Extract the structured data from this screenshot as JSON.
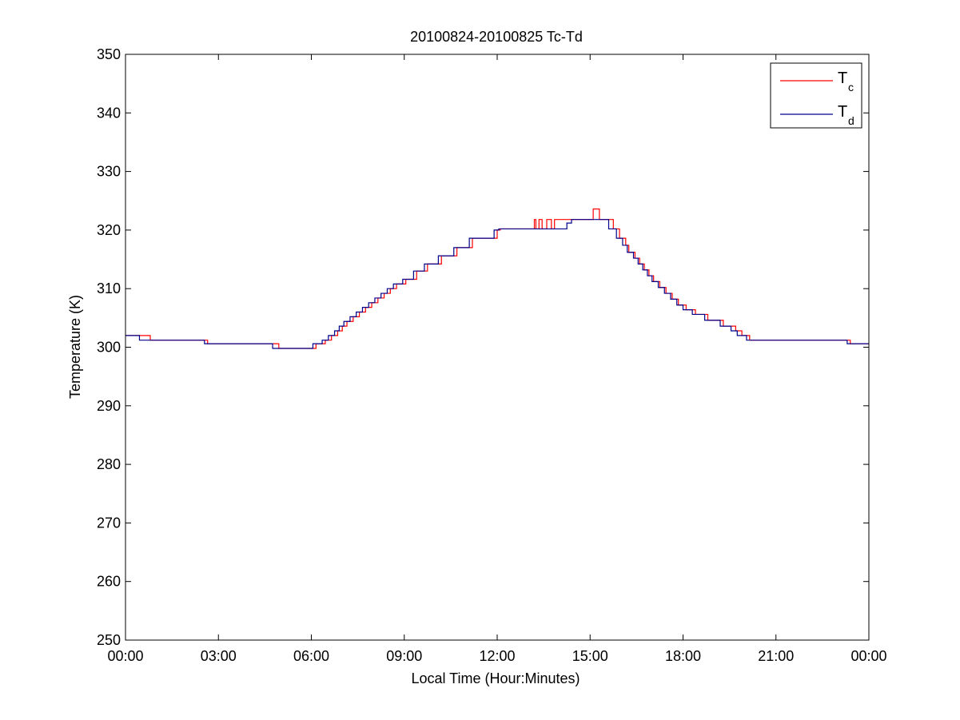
{
  "chart_data": {
    "type": "line",
    "title": "20100824-20100825 Tc-Td",
    "xlabel": "Local Time (Hour:Minutes)",
    "ylabel": "Temperature (K)",
    "xlim": [
      0,
      24
    ],
    "ylim": [
      250,
      350
    ],
    "x_ticks": [
      0,
      3,
      6,
      9,
      12,
      15,
      18,
      21,
      24
    ],
    "x_tick_labels": [
      "00:00",
      "03:00",
      "06:00",
      "09:00",
      "12:00",
      "15:00",
      "18:00",
      "21:00",
      "00:00"
    ],
    "y_ticks": [
      250,
      260,
      270,
      280,
      290,
      300,
      310,
      320,
      330,
      340,
      350
    ],
    "y_tick_labels": [
      "250",
      "260",
      "270",
      "280",
      "290",
      "300",
      "310",
      "320",
      "330",
      "340",
      "350"
    ],
    "x_unit": "hours",
    "step": true,
    "legend": {
      "position": "top-right"
    },
    "series": [
      {
        "name": "Tc",
        "name_main": "T",
        "name_sub": "c",
        "color": "#ff0000",
        "x": [
          0,
          0.8,
          2.65,
          4.95,
          6.15,
          6.45,
          6.65,
          6.85,
          7.0,
          7.15,
          7.35,
          7.55,
          7.75,
          7.95,
          8.15,
          8.35,
          8.55,
          8.75,
          9.05,
          9.4,
          9.75,
          10.2,
          10.7,
          11.2,
          12.0,
          12.1,
          13.2,
          13.25,
          13.35,
          13.45,
          13.6,
          13.75,
          13.85,
          14.2,
          14.25,
          14.4,
          15.1,
          15.3,
          15.75,
          15.95,
          16.15,
          16.25,
          16.45,
          16.6,
          16.75,
          16.9,
          17.05,
          17.25,
          17.45,
          17.65,
          17.85,
          18.1,
          18.4,
          18.8,
          19.3,
          19.6,
          19.7,
          19.9,
          20.15,
          20.45,
          23.4,
          24
        ],
        "y": [
          302,
          301.2,
          300.6,
          299.8,
          300.6,
          301.2,
          302,
          302.8,
          303.6,
          304.4,
          305.2,
          306,
          306.8,
          307.6,
          308.4,
          309.2,
          310,
          310.8,
          311.6,
          313,
          314.2,
          315.6,
          317,
          318.6,
          320,
          320.2,
          321.8,
          320.2,
          321.8,
          320.2,
          321.8,
          320.2,
          321.8,
          321.8,
          321.8,
          321.8,
          323.6,
          321.8,
          320.2,
          318.6,
          317.4,
          316.2,
          315.2,
          314.2,
          313.2,
          312.2,
          311.2,
          310.2,
          309.2,
          308.2,
          307.2,
          306.4,
          305.6,
          304.6,
          303.6,
          303.6,
          302.8,
          302,
          301.2,
          301.2,
          300.6,
          300.6
        ]
      },
      {
        "name": "Td",
        "name_main": "T",
        "name_sub": "d",
        "color": "#00008b",
        "x": [
          0,
          0.45,
          2.55,
          4.75,
          6.05,
          6.35,
          6.55,
          6.75,
          6.9,
          7.05,
          7.25,
          7.45,
          7.65,
          7.85,
          8.05,
          8.25,
          8.45,
          8.65,
          8.95,
          9.3,
          9.65,
          10.1,
          10.6,
          11.1,
          11.9,
          12.05,
          14.25,
          14.4,
          15.6,
          15.85,
          16.05,
          16.2,
          16.4,
          16.55,
          16.7,
          16.85,
          17.0,
          17.2,
          17.4,
          17.6,
          17.8,
          18.0,
          18.3,
          18.7,
          19.2,
          19.55,
          19.75,
          20.05,
          20.35,
          23.3,
          24
        ],
        "y": [
          302,
          301.2,
          300.6,
          299.8,
          300.6,
          301.2,
          302,
          302.8,
          303.6,
          304.4,
          305.2,
          306,
          306.8,
          307.6,
          308.4,
          309.2,
          310,
          310.8,
          311.6,
          313,
          314.2,
          315.6,
          317,
          318.6,
          320,
          320.2,
          321.2,
          321.8,
          320.2,
          318.6,
          317.4,
          316.2,
          315.2,
          314.2,
          313.2,
          312.2,
          311.2,
          310.2,
          309.2,
          308.2,
          307.2,
          306.4,
          305.6,
          304.6,
          303.6,
          302.8,
          302,
          301.2,
          301.2,
          300.6,
          300.6
        ]
      }
    ]
  }
}
